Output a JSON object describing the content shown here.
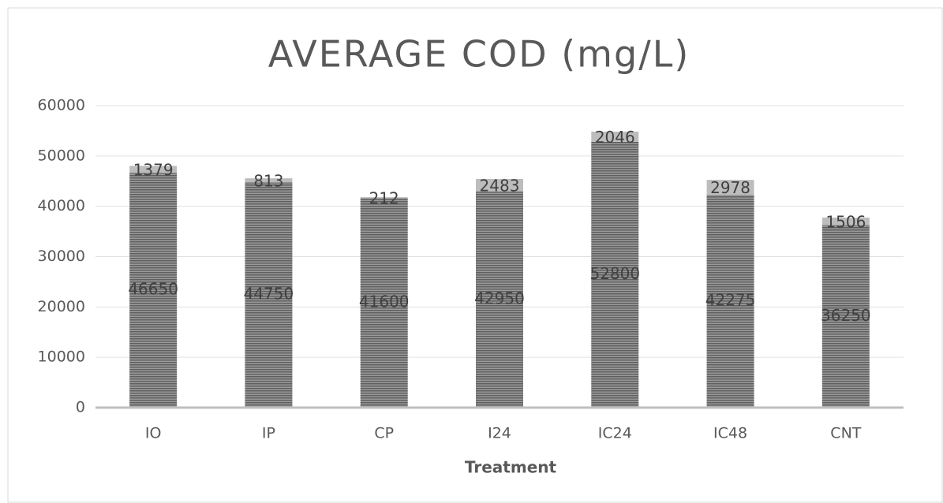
{
  "chart_data": {
    "type": "stacked_bar",
    "title": "AVERAGE COD (mg/L)",
    "x_label": "Treatment",
    "categories": [
      "IO",
      "IP",
      "CP",
      "I24",
      "IC24",
      "IC48",
      "CNT"
    ],
    "series": [
      {
        "color": "#7a7a7a",
        "values": [
          46650,
          44750,
          41600,
          42950,
          52800,
          42275,
          36250
        ]
      },
      {
        "color": "#bdbdbd",
        "values": [
          1379,
          813,
          212,
          2483,
          2046,
          2978,
          1506
        ]
      }
    ],
    "ylim": [
      0,
      60000
    ],
    "yticks": [
      0,
      10000,
      20000,
      30000,
      40000,
      50000,
      60000
    ],
    "grid": true
  }
}
